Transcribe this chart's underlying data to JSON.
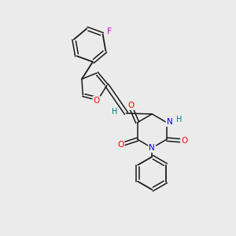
{
  "background_color": "#ebebeb",
  "bond_color": "#1a1a1a",
  "atom_colors": {
    "O": "#ff0000",
    "N": "#0000ee",
    "F": "#cc00cc",
    "H": "#008080"
  },
  "font_size": 7.5
}
